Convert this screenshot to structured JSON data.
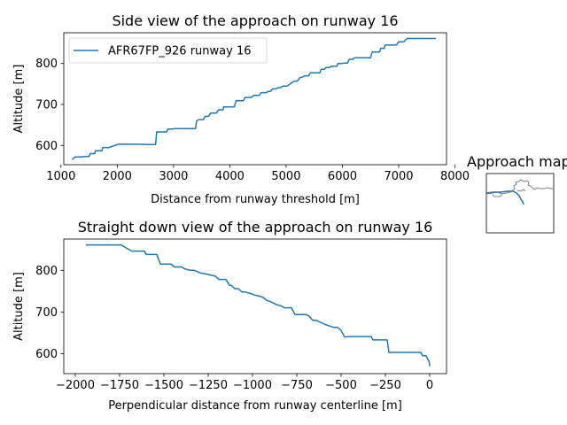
{
  "chart_data": [
    {
      "type": "line",
      "title": "Side view of the approach on runway 16",
      "xlabel": "Distance from runway threshold [m]",
      "ylabel": "Altitude [m]",
      "xlim": [
        1050,
        7850
      ],
      "ylim": [
        553,
        875
      ],
      "xticks": [
        1000,
        2000,
        3000,
        4000,
        5000,
        6000,
        7000,
        8000
      ],
      "yticks": [
        600,
        700,
        800
      ],
      "grid": false,
      "legend": "top-left",
      "series": [
        {
          "name": "AFR67FP_926 runway 16",
          "color": "#1f77b4",
          "x": [
            1200,
            1250,
            1390,
            1400,
            1500,
            1520,
            1600,
            1610,
            1730,
            1740,
            1800,
            1830,
            2000,
            2020,
            2400,
            2550,
            2680,
            2700,
            2880,
            2900,
            3000,
            3010,
            3150,
            3390,
            3410,
            3450,
            3530,
            3560,
            3620,
            3660,
            3760,
            3800,
            3880,
            3890,
            3930,
            3950,
            4080,
            4110,
            4240,
            4270,
            4380,
            4420,
            4520,
            4560,
            4650,
            4680,
            4720,
            4760,
            4820,
            4860,
            4900,
            4940,
            4960,
            5020,
            5120,
            5150,
            5200,
            5250,
            5280,
            5330,
            5400,
            5430,
            5480,
            5520,
            5600,
            5620,
            5680,
            5710,
            5770,
            5800,
            5900,
            5920,
            6000,
            6020,
            6090,
            6120,
            6180,
            6220,
            6380,
            6450,
            6500,
            6530,
            6660,
            6680,
            6740,
            6760,
            6960,
            7000,
            7090,
            7150,
            7660
          ],
          "y": [
            565,
            572,
            572,
            573,
            573,
            580,
            580,
            587,
            587,
            595,
            595,
            594,
            602,
            603,
            603,
            602,
            602,
            633,
            633,
            640,
            640,
            641,
            641,
            641,
            660,
            663,
            663,
            671,
            671,
            679,
            679,
            687,
            687,
            694,
            694,
            694,
            694,
            709,
            709,
            717,
            717,
            722,
            722,
            729,
            729,
            732,
            732,
            738,
            738,
            741,
            741,
            745,
            745,
            745,
            755,
            757,
            757,
            766,
            766,
            770,
            770,
            777,
            777,
            777,
            777,
            786,
            786,
            790,
            790,
            793,
            793,
            800,
            800,
            801,
            801,
            810,
            810,
            814,
            814,
            814,
            814,
            828,
            828,
            837,
            837,
            845,
            845,
            853,
            853,
            861,
            861
          ]
        }
      ]
    },
    {
      "type": "line",
      "title": "Straight down view of the approach on runway 16",
      "xlabel": "Perpendicular distance from runway centerline [m]",
      "ylabel": "Altitude [m]",
      "xlim": [
        -2065,
        95
      ],
      "ylim": [
        552,
        875
      ],
      "xticks": [
        -2000,
        -1750,
        -1500,
        -1250,
        -1000,
        -750,
        -500,
        -250,
        0
      ],
      "yticks": [
        600,
        700,
        800
      ],
      "grid": false,
      "series": [
        {
          "color": "#1f77b4",
          "x": [
            -1940,
            -1740,
            -1710,
            -1680,
            -1610,
            -1600,
            -1540,
            -1520,
            -1460,
            -1440,
            -1400,
            -1380,
            -1350,
            -1330,
            -1290,
            -1280,
            -1210,
            -1190,
            -1150,
            -1130,
            -1120,
            -1100,
            -1080,
            -1060,
            -1040,
            -1010,
            -990,
            -960,
            -940,
            -920,
            -900,
            -860,
            -840,
            -820,
            -780,
            -760,
            -700,
            -680,
            -660,
            -640,
            -600,
            -590,
            -540,
            -520,
            -500,
            -480,
            -450,
            -330,
            -320,
            -240,
            -230,
            -100,
            -50,
            -40,
            -20,
            -10,
            -5,
            -2,
            0
          ],
          "y": [
            861,
            861,
            853,
            846,
            846,
            838,
            838,
            815,
            815,
            808,
            808,
            803,
            800,
            800,
            793,
            793,
            786,
            778,
            778,
            764,
            764,
            756,
            756,
            748,
            748,
            744,
            741,
            738,
            735,
            728,
            725,
            717,
            715,
            710,
            710,
            694,
            694,
            690,
            680,
            680,
            672,
            670,
            663,
            663,
            656,
            640,
            641,
            641,
            633,
            633,
            603,
            603,
            603,
            595,
            595,
            586,
            583,
            578,
            570
          ]
        }
      ]
    },
    {
      "type": "map",
      "title": "Approach map",
      "outline_color": "#808080",
      "track_color": "#1f77b4"
    }
  ]
}
